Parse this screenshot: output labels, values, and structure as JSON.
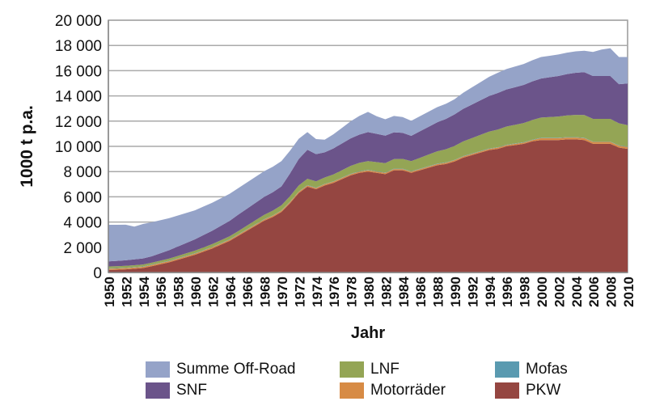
{
  "chart_data": {
    "type": "area",
    "stacked": true,
    "title": "",
    "xlabel": "Jahr",
    "ylabel": "1000 t p.a.",
    "ylim": [
      0,
      20000
    ],
    "yticks": [
      "0",
      "2 000",
      "4 000",
      "6 000",
      "8 000",
      "10 000",
      "12 000",
      "14 000",
      "16 000",
      "18 000",
      "20 000"
    ],
    "ytick_values": [
      0,
      2000,
      4000,
      6000,
      8000,
      10000,
      12000,
      14000,
      16000,
      18000,
      20000
    ],
    "grid": true,
    "legend_position": "bottom",
    "x": [
      1950,
      1951,
      1952,
      1953,
      1954,
      1955,
      1956,
      1957,
      1958,
      1959,
      1960,
      1961,
      1962,
      1963,
      1964,
      1965,
      1966,
      1967,
      1968,
      1969,
      1970,
      1971,
      1972,
      1973,
      1974,
      1975,
      1976,
      1977,
      1978,
      1979,
      1980,
      1981,
      1982,
      1983,
      1984,
      1985,
      1986,
      1987,
      1988,
      1989,
      1990,
      1991,
      1992,
      1993,
      1994,
      1995,
      1996,
      1997,
      1998,
      1999,
      2000,
      2001,
      2002,
      2003,
      2004,
      2005,
      2006,
      2007,
      2008,
      2009,
      2010
    ],
    "xtick_labels": [
      "1950",
      "1952",
      "1954",
      "1956",
      "1958",
      "1960",
      "1962",
      "1964",
      "1966",
      "1968",
      "1970",
      "1972",
      "1974",
      "1976",
      "1978",
      "1980",
      "1982",
      "1984",
      "1986",
      "1988",
      "1990",
      "1992",
      "1994",
      "1996",
      "1998",
      "2000",
      "2002",
      "2004",
      "2006",
      "2008",
      "2010"
    ],
    "series": [
      {
        "name": "PKW",
        "color": "#954641",
        "values": [
          200,
          220,
          250,
          300,
          350,
          500,
          650,
          800,
          1000,
          1200,
          1400,
          1650,
          1900,
          2200,
          2500,
          2900,
          3300,
          3700,
          4100,
          4400,
          4800,
          5500,
          6300,
          6800,
          6600,
          6900,
          7100,
          7400,
          7700,
          7900,
          8000,
          7900,
          7800,
          8100,
          8100,
          7900,
          8100,
          8300,
          8500,
          8600,
          8800,
          9100,
          9300,
          9500,
          9700,
          9800,
          10000,
          10100,
          10200,
          10400,
          10500,
          10500,
          10500,
          10550,
          10550,
          10500,
          10200,
          10200,
          10200,
          9900,
          9800
        ]
      },
      {
        "name": "Motorräder",
        "color": "#D78B45",
        "values": [
          100,
          100,
          100,
          100,
          100,
          100,
          100,
          100,
          100,
          100,
          100,
          100,
          100,
          100,
          100,
          100,
          100,
          100,
          100,
          100,
          100,
          100,
          100,
          100,
          100,
          100,
          100,
          100,
          100,
          100,
          100,
          100,
          100,
          100,
          100,
          100,
          100,
          100,
          100,
          100,
          100,
          100,
          100,
          100,
          100,
          100,
          100,
          100,
          100,
          100,
          150,
          150,
          150,
          150,
          150,
          150,
          150,
          150,
          150,
          150,
          150
        ]
      },
      {
        "name": "Mofas",
        "color": "#5A9AB0",
        "values": [
          30,
          30,
          30,
          30,
          30,
          30,
          30,
          30,
          30,
          30,
          30,
          30,
          30,
          30,
          30,
          30,
          30,
          30,
          30,
          30,
          30,
          30,
          30,
          30,
          30,
          30,
          30,
          30,
          30,
          30,
          30,
          30,
          30,
          30,
          30,
          30,
          30,
          30,
          30,
          30,
          30,
          30,
          30,
          30,
          30,
          30,
          30,
          30,
          30,
          30,
          30,
          30,
          30,
          30,
          30,
          30,
          30,
          30,
          30,
          30,
          30
        ]
      },
      {
        "name": "LNF",
        "color": "#94A555",
        "values": [
          150,
          150,
          150,
          150,
          150,
          150,
          160,
          170,
          180,
          190,
          200,
          210,
          220,
          230,
          240,
          250,
          280,
          310,
          340,
          370,
          400,
          430,
          470,
          500,
          500,
          500,
          540,
          580,
          620,
          660,
          700,
          720,
          740,
          760,
          780,
          800,
          860,
          920,
          980,
          1040,
          1100,
          1160,
          1220,
          1280,
          1340,
          1400,
          1440,
          1480,
          1520,
          1560,
          1600,
          1640,
          1680,
          1720,
          1760,
          1800,
          1800,
          1800,
          1800,
          1750,
          1700
        ]
      },
      {
        "name": "SNF",
        "color": "#6B548A",
        "values": [
          400,
          420,
          440,
          460,
          480,
          500,
          580,
          660,
          740,
          820,
          900,
          980,
          1060,
          1140,
          1220,
          1300,
          1340,
          1380,
          1420,
          1460,
          1500,
          1800,
          2100,
          2300,
          2150,
          2000,
          2060,
          2120,
          2180,
          2240,
          2300,
          2240,
          2180,
          2120,
          2060,
          2000,
          2100,
          2200,
          2300,
          2400,
          2500,
          2580,
          2660,
          2740,
          2820,
          2900,
          2940,
          2980,
          3020,
          3060,
          3100,
          3160,
          3220,
          3280,
          3340,
          3400,
          3400,
          3400,
          3400,
          3100,
          3300
        ]
      },
      {
        "name": "Summe Off-Road",
        "color": "#95A3C8",
        "values": [
          2900,
          2860,
          2820,
          2600,
          2740,
          2700,
          2620,
          2540,
          2460,
          2380,
          2300,
          2260,
          2220,
          2180,
          2140,
          2100,
          2080,
          2060,
          2040,
          2020,
          2000,
          1800,
          1600,
          1400,
          1200,
          1000,
          1120,
          1240,
          1360,
          1480,
          1600,
          1400,
          1300,
          1300,
          1250,
          1200,
          1200,
          1200,
          1200,
          1200,
          1200,
          1280,
          1360,
          1440,
          1520,
          1600,
          1620,
          1640,
          1660,
          1680,
          1700,
          1700,
          1700,
          1700,
          1700,
          1700,
          1900,
          2100,
          2200,
          2150,
          2100
        ]
      }
    ],
    "legend_order": [
      "Summe Off-Road",
      "SNF",
      "LNF",
      "Motorräder",
      "Mofas",
      "PKW"
    ]
  }
}
